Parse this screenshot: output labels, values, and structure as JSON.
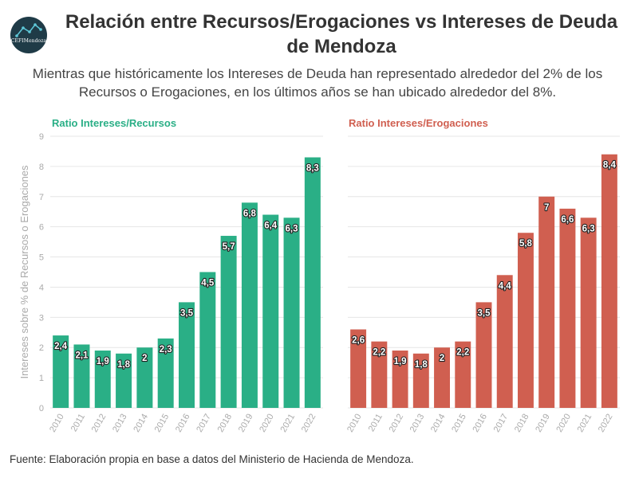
{
  "logo": {
    "text": "CEFIMendoza",
    "icon": "line-chart-logo-icon"
  },
  "header": {
    "title": "Relación entre Recursos/Erogaciones vs Intereses de Deuda de Mendoza",
    "subtitle": "Mientras que históricamente los Intereses de Deuda han representado alrededor del 2% de los Recursos o Erogaciones, en los últimos años se han ubicado alrededor del 8%."
  },
  "footer": {
    "source": "Fuente: Elaboración propia en base a datos del Ministerio de Hacienda de Mendoza."
  },
  "chart_data": [
    {
      "type": "bar",
      "title": "Ratio Intereses/Recursos",
      "ylabel": "Intereses sobre % de Recursos o Erogaciones",
      "categories": [
        "2010",
        "2011",
        "2012",
        "2013",
        "2014",
        "2015",
        "2016",
        "2017",
        "2018",
        "2019",
        "2020",
        "2021",
        "2022"
      ],
      "values": [
        2.4,
        2.1,
        1.9,
        1.8,
        2,
        2.3,
        3.5,
        4.5,
        5.7,
        6.8,
        6.4,
        6.3,
        8.3
      ],
      "labels": [
        "2,4",
        "2,1",
        "1,9",
        "1,8",
        "2",
        "2,3",
        "3,5",
        "4,5",
        "5,7",
        "6,8",
        "6,4",
        "6,3",
        "8,3"
      ],
      "yticks": [
        "0",
        "1",
        "2",
        "3",
        "4",
        "5",
        "6",
        "7",
        "8",
        "9"
      ],
      "ylim": [
        0,
        9
      ],
      "grid": true,
      "color": "#2aaf86"
    },
    {
      "type": "bar",
      "title": "Ratio Intereses/Erogaciones",
      "ylabel": "",
      "categories": [
        "2010",
        "2011",
        "2012",
        "2013",
        "2014",
        "2015",
        "2016",
        "2017",
        "2018",
        "2019",
        "2020",
        "2021",
        "2022"
      ],
      "values": [
        2.6,
        2.2,
        1.9,
        1.8,
        2,
        2.2,
        3.5,
        4.4,
        5.8,
        7,
        6.6,
        6.3,
        8.4
      ],
      "labels": [
        "2,6",
        "2,2",
        "1,9",
        "1,8",
        "2",
        "2,2",
        "3,5",
        "4,4",
        "5,8",
        "7",
        "6,6",
        "6,3",
        "8,4"
      ],
      "yticks": [],
      "ylim": [
        0,
        9
      ],
      "grid": true,
      "color": "#d05f50"
    }
  ]
}
